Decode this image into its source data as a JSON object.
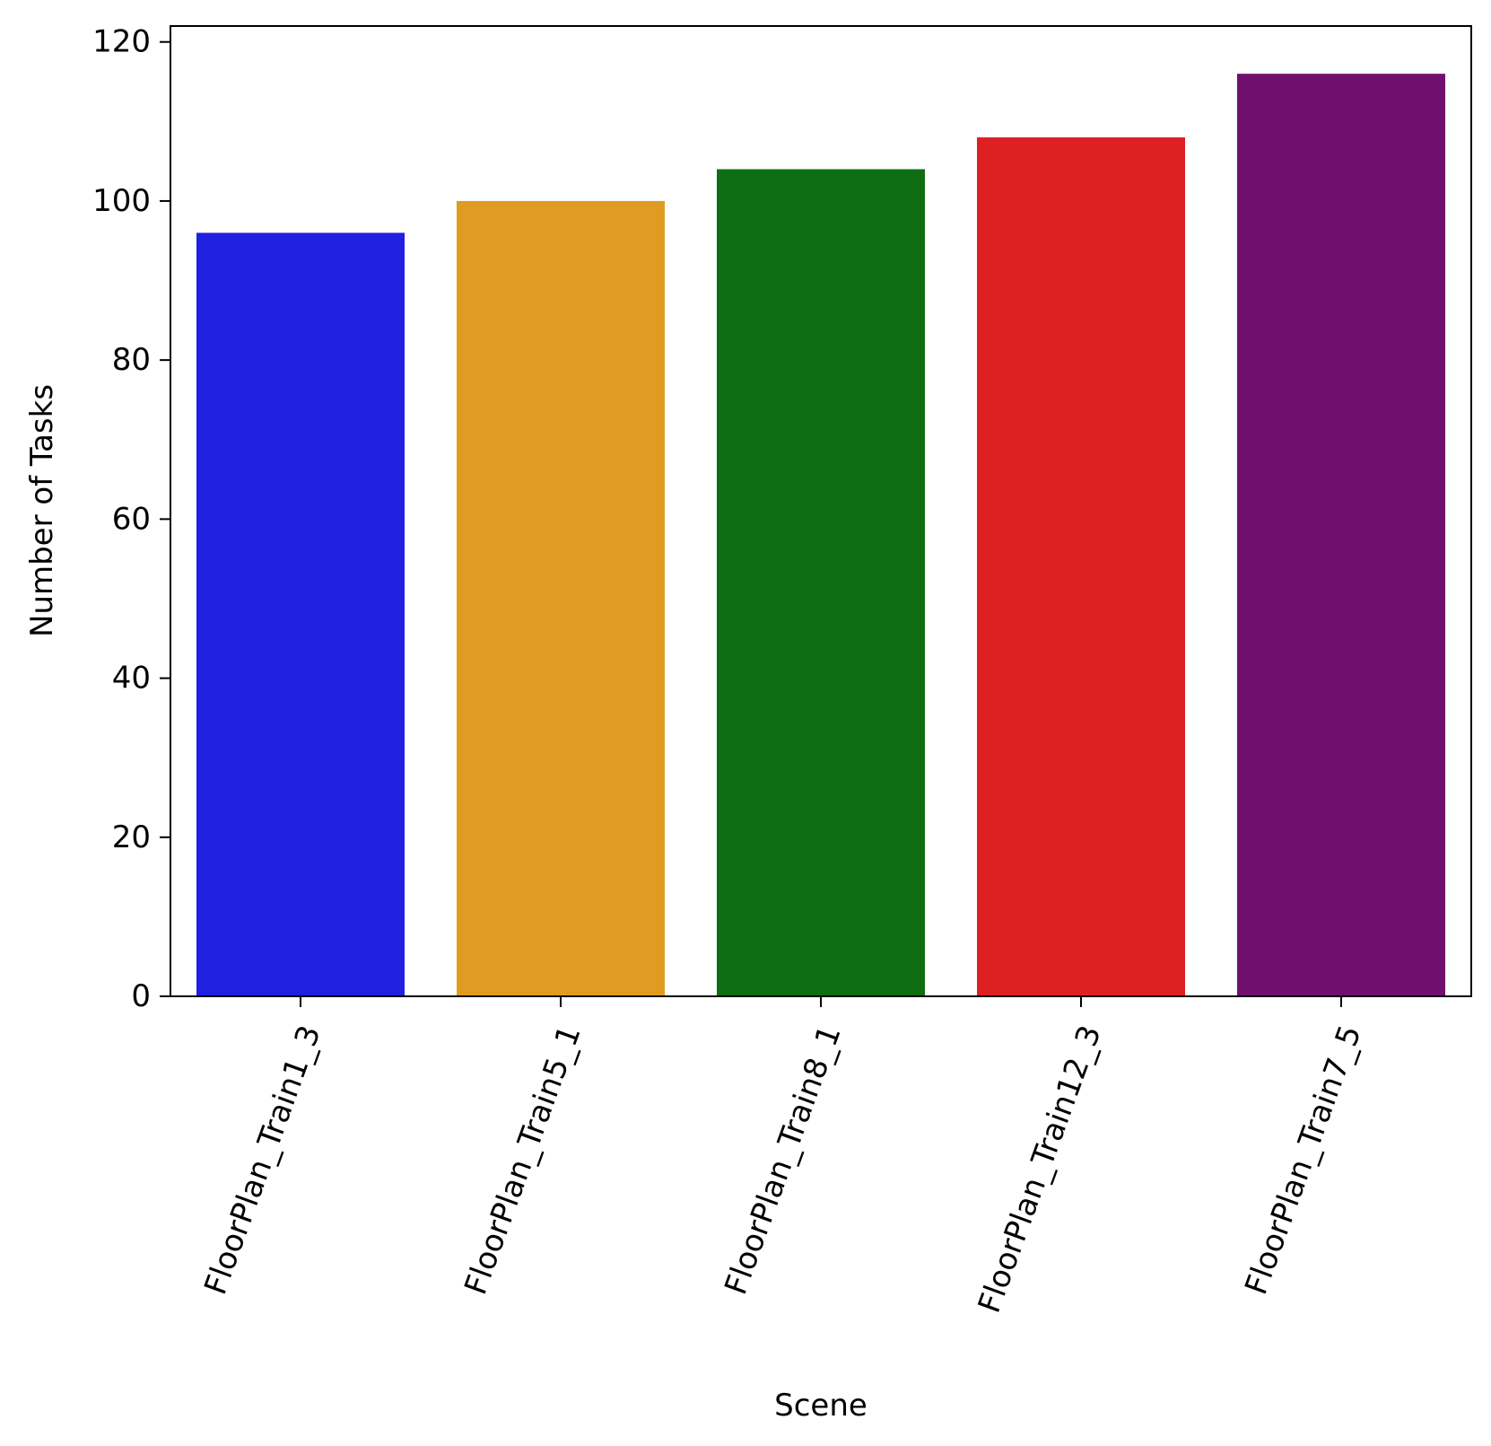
{
  "chart_data": {
    "type": "bar",
    "title": "",
    "xlabel": "Scene",
    "ylabel": "Number of Tasks",
    "categories": [
      "FloorPlan_Train1_3",
      "FloorPlan_Train5_1",
      "FloorPlan_Train8_1",
      "FloorPlan_Train12_3",
      "FloorPlan_Train7_5"
    ],
    "values": [
      96,
      100,
      104,
      108,
      116
    ],
    "colors": [
      "#2020e0",
      "#e09c22",
      "#106e12",
      "#df2022",
      "#6f106e"
    ],
    "ylim": [
      0,
      122
    ],
    "yticks": [
      0,
      20,
      40,
      60,
      80,
      100,
      120
    ],
    "ytick_labels": [
      "0",
      "20",
      "40",
      "60",
      "80",
      "100",
      "120"
    ],
    "grid": false,
    "legend": "none"
  }
}
